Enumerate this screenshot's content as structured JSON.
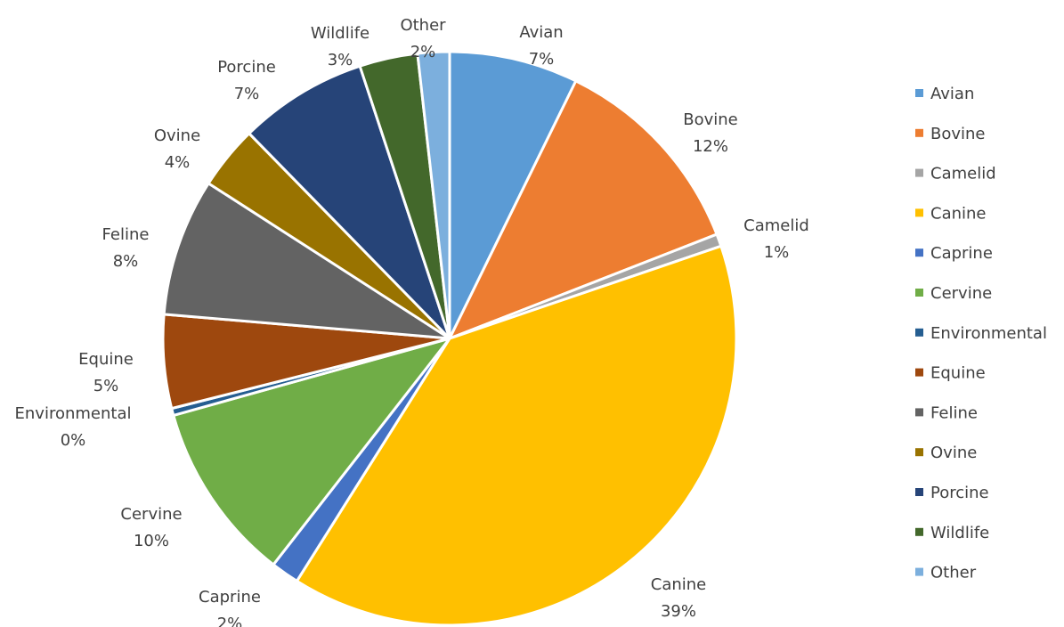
{
  "chart_data": {
    "type": "pie",
    "title": "",
    "legend_position": "right",
    "slices": [
      {
        "name": "Avian",
        "value": 7.3,
        "label": "7%",
        "color": "#5B9BD5"
      },
      {
        "name": "Bovine",
        "value": 11.9,
        "label": "12%",
        "color": "#ED7D31"
      },
      {
        "name": "Camelid",
        "value": 0.7,
        "label": "1%",
        "color": "#A5A5A5"
      },
      {
        "name": "Canine",
        "value": 39.4,
        "label": "39%",
        "color": "#FFC000"
      },
      {
        "name": "Caprine",
        "value": 1.6,
        "label": "2%",
        "color": "#4472C4"
      },
      {
        "name": "Cervine",
        "value": 10.2,
        "label": "10%",
        "color": "#70AD47"
      },
      {
        "name": "Environmental",
        "value": 0.4,
        "label": "0%",
        "color": "#255E91"
      },
      {
        "name": "Equine",
        "value": 5.3,
        "label": "5%",
        "color": "#9E480E"
      },
      {
        "name": "Feline",
        "value": 7.8,
        "label": "8%",
        "color": "#636363"
      },
      {
        "name": "Ovine",
        "value": 3.6,
        "label": "4%",
        "color": "#997300"
      },
      {
        "name": "Porcine",
        "value": 7.3,
        "label": "7%",
        "color": "#264478"
      },
      {
        "name": "Wildlife",
        "value": 3.3,
        "label": "3%",
        "color": "#43682B"
      },
      {
        "name": "Other",
        "value": 1.8,
        "label": "2%",
        "color": "#7CAFDD"
      }
    ]
  }
}
